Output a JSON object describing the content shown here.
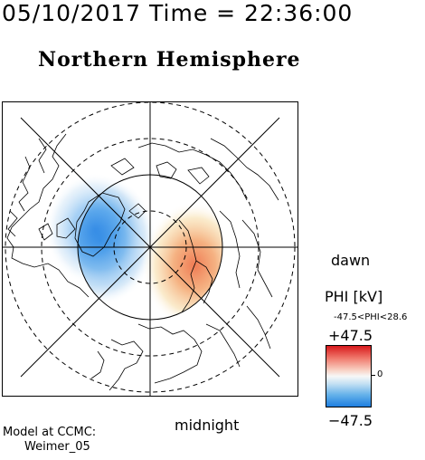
{
  "header": {
    "datetime": "05/10/2017 Time = 22:36:00"
  },
  "map": {
    "title": "Northern Hemisphere",
    "projection": "polar-stereographic north pole",
    "orientation_labels": {
      "right": "dawn",
      "bottom": "midnight"
    },
    "overlay": "electric potential PHI",
    "colors": {
      "positive": "#d7191c",
      "negative": "#1f7fe0",
      "neutral": "#f7f7f7"
    }
  },
  "legend": {
    "title": "PHI [kV]",
    "range_text": "-47.5<PHI<28.6",
    "max_label": "+47.5",
    "min_label": "−47.5",
    "zero_label": "0"
  },
  "credits": {
    "line1": "Model at CCMC:",
    "line2": "Weimer_05"
  }
}
